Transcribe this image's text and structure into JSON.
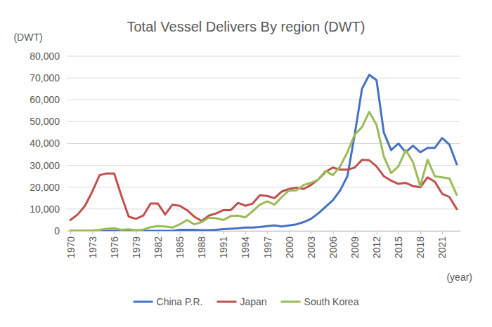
{
  "chart_data": {
    "type": "line",
    "title": "Total Vessel Delivers By region (DWT)",
    "y_label": "(DWT)",
    "x_label": "(year)",
    "x": [
      1970,
      1971,
      1972,
      1973,
      1974,
      1975,
      1976,
      1977,
      1978,
      1979,
      1980,
      1981,
      1982,
      1983,
      1984,
      1985,
      1986,
      1987,
      1988,
      1989,
      1990,
      1991,
      1992,
      1993,
      1994,
      1995,
      1996,
      1997,
      1998,
      1999,
      2000,
      2001,
      2002,
      2003,
      2004,
      2005,
      2006,
      2007,
      2008,
      2009,
      2010,
      2011,
      2012,
      2013,
      2014,
      2015,
      2016,
      2017,
      2018,
      2019,
      2020,
      2021,
      2022,
      2023
    ],
    "xlim": [
      1969.5,
      2023.5
    ],
    "xticks": [
      1970,
      1973,
      1976,
      1979,
      1982,
      1985,
      1988,
      1991,
      1994,
      1997,
      2000,
      2003,
      2006,
      2009,
      2012,
      2015,
      2018,
      2021
    ],
    "ylim": [
      0,
      80000
    ],
    "yticks": [
      0,
      {
        "value": 10000,
        "label": "10,000"
      },
      {
        "value": 20000,
        "label": "20,000"
      },
      {
        "value": 30000,
        "label": "30,000"
      },
      {
        "value": 40000,
        "label": "40,000"
      },
      {
        "value": 50000,
        "label": "50,000"
      },
      {
        "value": 60000,
        "label": "60,000"
      },
      {
        "value": 70000,
        "label": "70,000"
      },
      {
        "value": 80000,
        "label": "80,000"
      }
    ],
    "grid": true,
    "legend": "bottom",
    "series": [
      {
        "name": "China P.R.",
        "color": "#4472c4",
        "values": [
          0,
          0,
          0,
          0,
          0,
          0,
          0,
          0,
          0,
          0,
          0,
          0,
          0,
          0,
          0,
          500,
          500,
          500,
          300,
          300,
          500,
          800,
          1000,
          1200,
          1500,
          1500,
          1800,
          2200,
          2500,
          2000,
          2500,
          3000,
          4000,
          5500,
          8000,
          11000,
          14000,
          18500,
          25000,
          44000,
          65000,
          71500,
          69000,
          45000,
          37000,
          40000,
          36000,
          39000,
          36000,
          38000,
          38000,
          42500,
          39500,
          30500
        ]
      },
      {
        "name": "Japan",
        "color": "#c0504d",
        "values": [
          5000,
          7500,
          11500,
          18000,
          25500,
          26300,
          26300,
          16000,
          6500,
          5500,
          7000,
          12500,
          12500,
          7500,
          12000,
          11500,
          9500,
          6500,
          4500,
          7000,
          8000,
          9500,
          9500,
          12800,
          11500,
          12500,
          16300,
          16000,
          15000,
          18000,
          19200,
          19800,
          19200,
          21000,
          23500,
          27000,
          29000,
          28000,
          28000,
          29000,
          32500,
          32300,
          29500,
          25000,
          23000,
          21500,
          22000,
          20500,
          20000,
          24500,
          22500,
          17000,
          15500,
          10000
        ]
      },
      {
        "name": "South Korea",
        "color": "#9bbb59",
        "values": [
          0,
          0,
          0,
          200,
          500,
          1000,
          1200,
          500,
          700,
          300,
          600,
          1700,
          2200,
          2000,
          1500,
          3000,
          5000,
          3000,
          4000,
          6000,
          5800,
          5000,
          6800,
          7000,
          6200,
          9000,
          12000,
          13500,
          12000,
          15500,
          18500,
          18500,
          21000,
          22000,
          23500,
          27500,
          25500,
          29500,
          36000,
          44000,
          47500,
          54500,
          48500,
          34000,
          26500,
          29500,
          37000,
          31500,
          20500,
          32500,
          25000,
          24500,
          24000,
          16500
        ]
      }
    ]
  }
}
